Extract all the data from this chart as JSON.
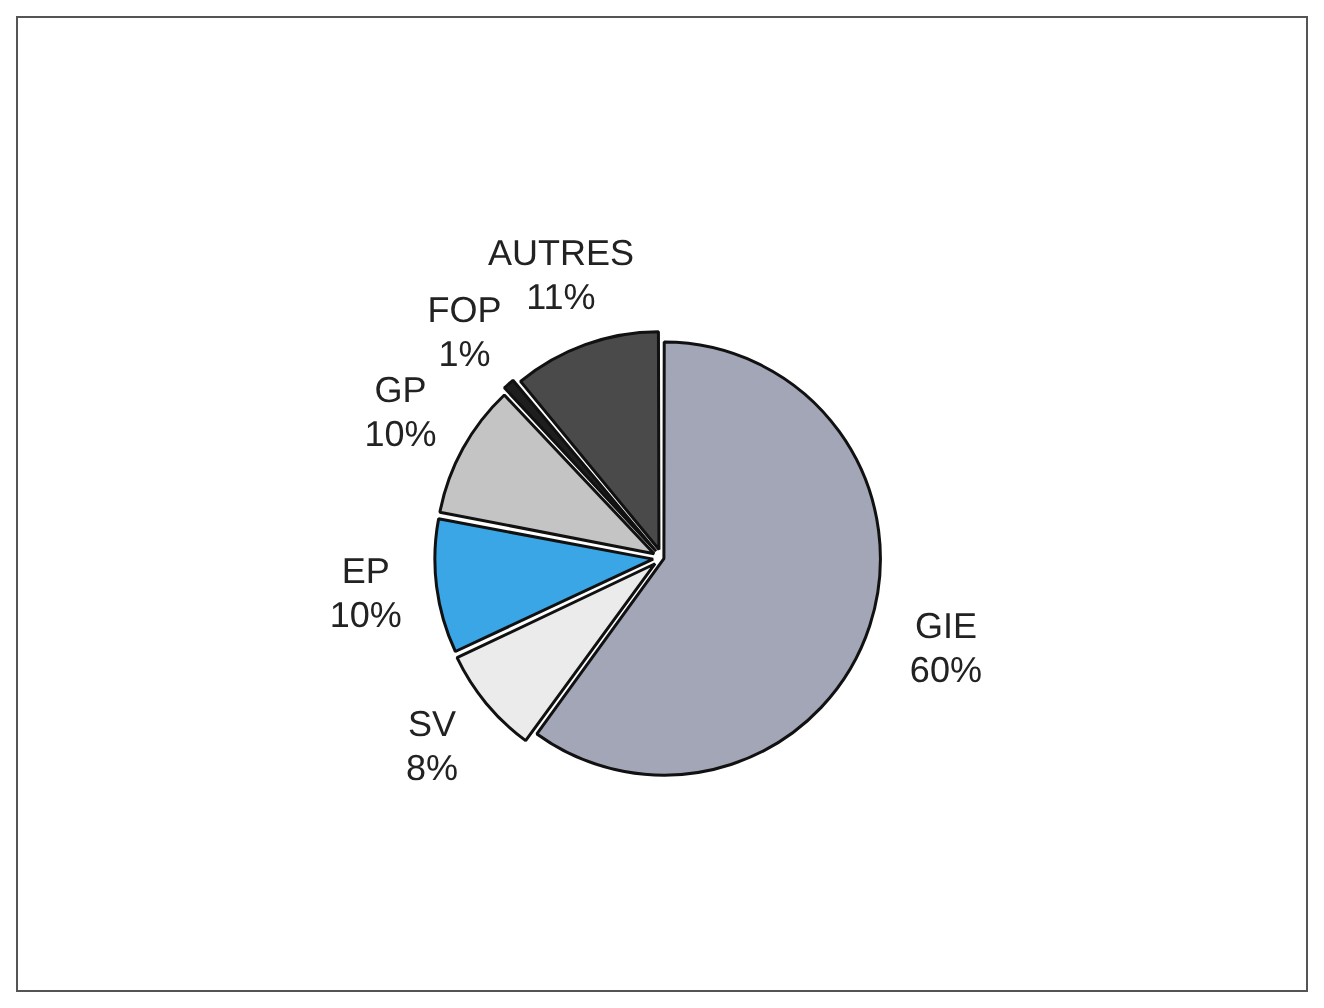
{
  "chart_data": {
    "type": "pie",
    "categories": [
      "GIE",
      "SV",
      "EP",
      "GP",
      "FOP",
      "AUTRES"
    ],
    "values": [
      60,
      8,
      10,
      10,
      1,
      11
    ],
    "value_labels": [
      "60%",
      "8%",
      "10%",
      "10%",
      "1%",
      "11%"
    ],
    "colors": [
      "#a3a6b6",
      "#ebebeb",
      "#3aa6e6",
      "#c4c4c4",
      "#1e1e1e",
      "#4a4a4a"
    ],
    "legend": false
  }
}
